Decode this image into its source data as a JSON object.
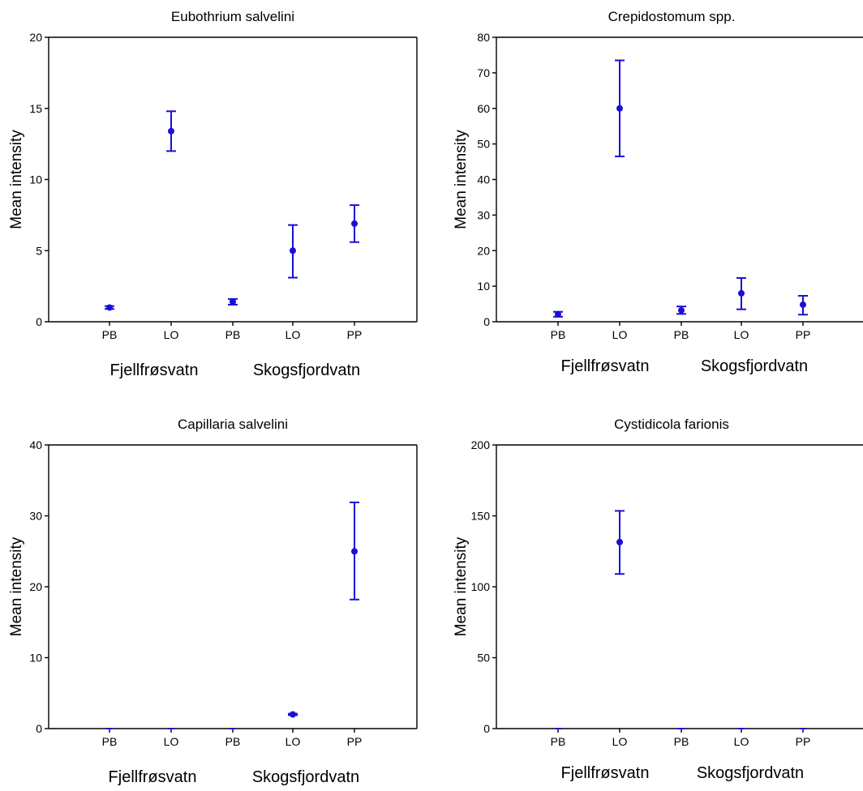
{
  "chart_data": [
    {
      "type": "scatter",
      "title": "Eubothrium salvelini",
      "ylabel": "Mean intensity",
      "ylim": [
        0,
        20
      ],
      "yticks": [
        0,
        5,
        10,
        15,
        20
      ],
      "categories": [
        "PB",
        "LO",
        "PB",
        "LO",
        "PP"
      ],
      "groups": [
        "Fjellfrøsvatn",
        "Skogsfjordvatn"
      ],
      "points": [
        {
          "category": "PB",
          "value": 1.0,
          "low": 0.9,
          "high": 1.1
        },
        {
          "category": "LO",
          "value": 13.4,
          "low": 12.0,
          "high": 14.8
        },
        {
          "category": "PB",
          "value": 1.4,
          "low": 1.2,
          "high": 1.6
        },
        {
          "category": "LO",
          "value": 5.0,
          "low": 3.1,
          "high": 6.8
        },
        {
          "category": "PP",
          "value": 6.9,
          "low": 5.6,
          "high": 8.2
        }
      ]
    },
    {
      "type": "scatter",
      "title": "Crepidostomum spp.",
      "ylabel": "Mean intensity",
      "ylim": [
        0,
        80
      ],
      "yticks": [
        0,
        10,
        20,
        30,
        40,
        50,
        60,
        70,
        80
      ],
      "categories": [
        "PB",
        "LO",
        "PB",
        "LO",
        "PP"
      ],
      "groups": [
        "Fjellfrøsvatn",
        "Skogsfjordvatn"
      ],
      "points": [
        {
          "category": "PB",
          "value": 2.1,
          "low": 1.4,
          "high": 2.8
        },
        {
          "category": "LO",
          "value": 60.0,
          "low": 46.5,
          "high": 73.5
        },
        {
          "category": "PB",
          "value": 3.2,
          "low": 2.2,
          "high": 4.3
        },
        {
          "category": "LO",
          "value": 8.0,
          "low": 3.5,
          "high": 12.3
        },
        {
          "category": "PP",
          "value": 4.8,
          "low": 2.0,
          "high": 7.3
        }
      ]
    },
    {
      "type": "scatter",
      "title": "Capillaria salvelini",
      "ylabel": "Mean intensity",
      "ylim": [
        0,
        40
      ],
      "yticks": [
        0,
        10,
        20,
        30,
        40
      ],
      "categories": [
        "PB",
        "LO",
        "PB",
        "LO",
        "PP"
      ],
      "groups": [
        "Fjellfrøsvatn",
        "Skogsfjordvatn"
      ],
      "points": [
        {
          "category": "PB",
          "value": 0,
          "low": 0,
          "high": 0
        },
        {
          "category": "LO",
          "value": 0,
          "low": 0,
          "high": 0
        },
        {
          "category": "PB",
          "value": 0,
          "low": 0,
          "high": 0
        },
        {
          "category": "LO",
          "value": 2.0,
          "low": 1.9,
          "high": 2.1
        },
        {
          "category": "PP",
          "value": 25.0,
          "low": 18.2,
          "high": 31.9
        }
      ]
    },
    {
      "type": "scatter",
      "title": "Cystidicola farionis",
      "ylabel": "Mean intensity",
      "ylim": [
        0,
        200
      ],
      "yticks": [
        0,
        50,
        100,
        150,
        200
      ],
      "categories": [
        "PB",
        "LO",
        "PB",
        "LO",
        "PP"
      ],
      "groups": [
        "Fjellfrøsvatn",
        "Skogsfjordvatn"
      ],
      "points": [
        {
          "category": "PB",
          "value": 0,
          "low": 0,
          "high": 0
        },
        {
          "category": "LO",
          "value": 131.5,
          "low": 109.0,
          "high": 153.5
        },
        {
          "category": "PB",
          "value": 0,
          "low": 0,
          "high": 0
        },
        {
          "category": "LO",
          "value": 0,
          "low": 0,
          "high": 0
        },
        {
          "category": "PP",
          "value": 0,
          "low": 0,
          "high": 0
        }
      ]
    }
  ],
  "colors": {
    "series": "#1a0fd6",
    "axis": "#000000"
  }
}
